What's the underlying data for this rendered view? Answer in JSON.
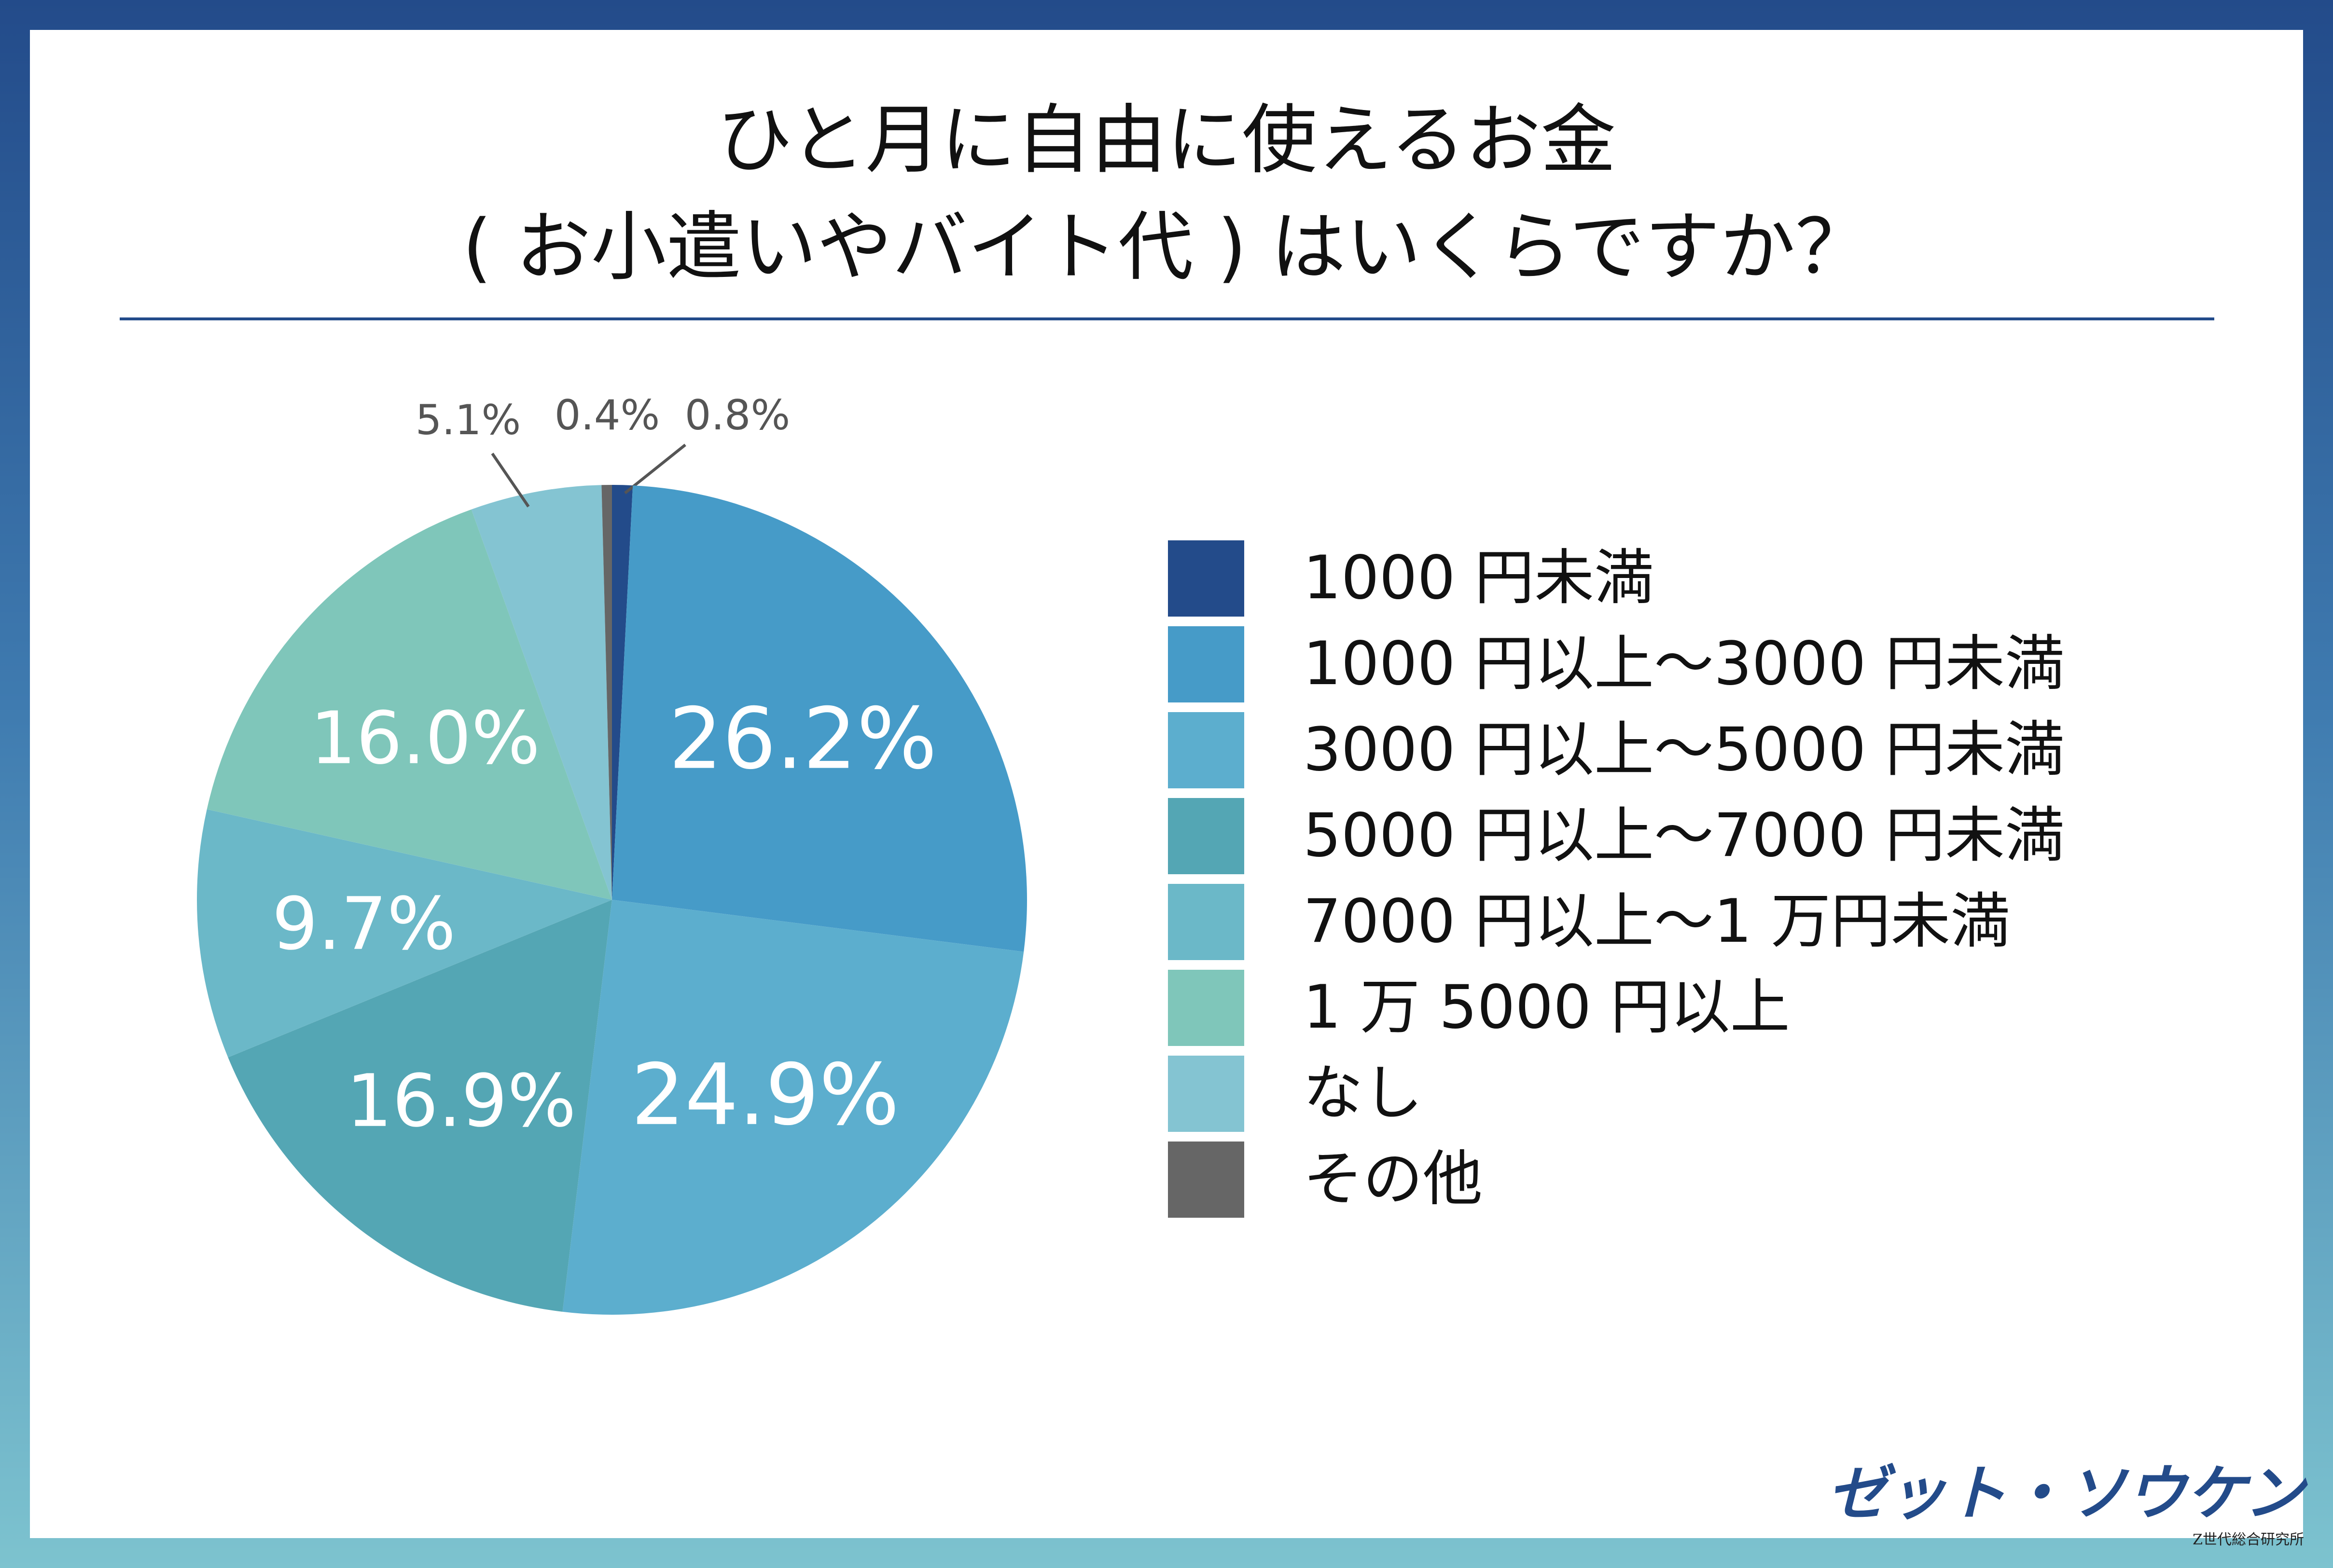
{
  "header": {
    "title_line1": "ひと月に自由に使えるお金",
    "title_line2": "( お小遣いやバイト代 ) はいくらですか？"
  },
  "chart_data": {
    "type": "pie",
    "title": "ひと月に自由に使えるお金 ( お小遣いやバイト代 ) はいくらですか？",
    "start_angle_deg": 0,
    "direction": "clockwise",
    "legend_position": "right",
    "slices": [
      {
        "label": "1000 円未満",
        "value": 0.8,
        "display": "0.8%",
        "color": "#234b8a",
        "label_style": "outside"
      },
      {
        "label": "1000 円以上～3000 円未満",
        "value": 26.2,
        "display": "26.2%",
        "color": "#469bc8",
        "label_style": "inside"
      },
      {
        "label": "3000 円以上～5000 円未満",
        "value": 24.9,
        "display": "24.9%",
        "color": "#5caece",
        "label_style": "inside"
      },
      {
        "label": "5000 円以上～7000 円未満",
        "value": 16.9,
        "display": "16.9%",
        "color": "#54a6b4",
        "label_style": "inside"
      },
      {
        "label": "7000 円以上～1 万円未満",
        "value": 9.7,
        "display": "9.7%",
        "color": "#6bb8c8",
        "label_style": "inside"
      },
      {
        "label": "1 万 5000 円以上",
        "value": 16.0,
        "display": "16.0%",
        "color": "#7fc6ba",
        "label_style": "inside"
      },
      {
        "label": "なし",
        "value": 5.1,
        "display": "5.1%",
        "color": "#84c4d2",
        "label_style": "outside"
      },
      {
        "label": "その他",
        "value": 0.4,
        "display": "0.4%",
        "color": "#666666",
        "label_style": "outside"
      }
    ]
  },
  "branding": {
    "logo_text": "ゼット・ソウケン",
    "logo_subtext": "Z世代総合研究所",
    "logo_color": "#234b8a"
  }
}
